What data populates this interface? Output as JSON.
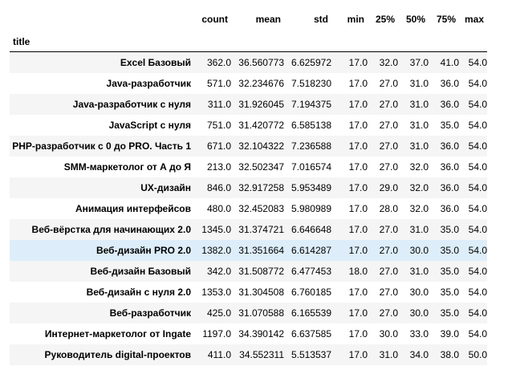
{
  "table": {
    "index_name": "title",
    "columns": [
      "count",
      "mean",
      "std",
      "min",
      "25%",
      "50%",
      "75%",
      "max"
    ],
    "rows": [
      {
        "title": "Excel Базовый",
        "values": [
          "362.0",
          "36.560773",
          "6.625972",
          "17.0",
          "32.0",
          "37.0",
          "41.0",
          "54.0"
        ]
      },
      {
        "title": "Java-разработчик",
        "values": [
          "571.0",
          "32.234676",
          "7.518230",
          "17.0",
          "27.0",
          "31.0",
          "36.0",
          "54.0"
        ]
      },
      {
        "title": "Java-разработчик с нуля",
        "values": [
          "311.0",
          "31.926045",
          "7.194375",
          "17.0",
          "27.0",
          "31.0",
          "36.0",
          "54.0"
        ]
      },
      {
        "title": "JavaScript с нуля",
        "values": [
          "751.0",
          "31.420772",
          "6.585138",
          "17.0",
          "27.0",
          "31.0",
          "35.0",
          "54.0"
        ]
      },
      {
        "title": "PHP-разработчик с 0 до PRO. Часть 1",
        "values": [
          "671.0",
          "32.104322",
          "7.236588",
          "17.0",
          "27.0",
          "31.0",
          "36.0",
          "54.0"
        ]
      },
      {
        "title": "SMM-маркетолог от А до Я",
        "values": [
          "213.0",
          "32.502347",
          "7.016574",
          "17.0",
          "27.0",
          "32.0",
          "36.0",
          "54.0"
        ]
      },
      {
        "title": "UX-дизайн",
        "values": [
          "846.0",
          "32.917258",
          "5.953489",
          "17.0",
          "29.0",
          "32.0",
          "36.0",
          "54.0"
        ]
      },
      {
        "title": "Анимация интерфейсов",
        "values": [
          "480.0",
          "32.452083",
          "5.980989",
          "17.0",
          "28.0",
          "32.0",
          "36.0",
          "54.0"
        ]
      },
      {
        "title": "Веб-вёрстка для начинающих 2.0",
        "values": [
          "1345.0",
          "31.374721",
          "6.646648",
          "17.0",
          "27.0",
          "31.0",
          "35.0",
          "54.0"
        ]
      },
      {
        "title": "Веб-дизайн PRO 2.0",
        "values": [
          "1382.0",
          "31.351664",
          "6.614287",
          "17.0",
          "27.0",
          "30.0",
          "35.0",
          "54.0"
        ]
      },
      {
        "title": "Веб-дизайн Базовый",
        "values": [
          "342.0",
          "31.508772",
          "6.477453",
          "18.0",
          "27.0",
          "31.0",
          "35.0",
          "54.0"
        ]
      },
      {
        "title": "Веб-дизайн с нуля 2.0",
        "values": [
          "1353.0",
          "31.304508",
          "6.760185",
          "17.0",
          "27.0",
          "30.0",
          "35.0",
          "54.0"
        ]
      },
      {
        "title": "Веб-разработчик",
        "values": [
          "425.0",
          "31.070588",
          "6.165539",
          "17.0",
          "27.0",
          "30.0",
          "35.0",
          "54.0"
        ]
      },
      {
        "title": "Интернет-маркетолог от Ingate",
        "values": [
          "1197.0",
          "34.390142",
          "6.637585",
          "17.0",
          "30.0",
          "33.0",
          "39.0",
          "54.0"
        ]
      },
      {
        "title": "Руководитель digital-проектов",
        "values": [
          "411.0",
          "34.552311",
          "5.513537",
          "17.0",
          "31.0",
          "34.0",
          "38.0",
          "50.0"
        ]
      }
    ],
    "highlighted_row": "Веб-дизайн PRO 2.0"
  },
  "colors": {
    "stripe": "#f5f5f5",
    "highlight": "#ddeefa",
    "header_rule": "#000000"
  }
}
